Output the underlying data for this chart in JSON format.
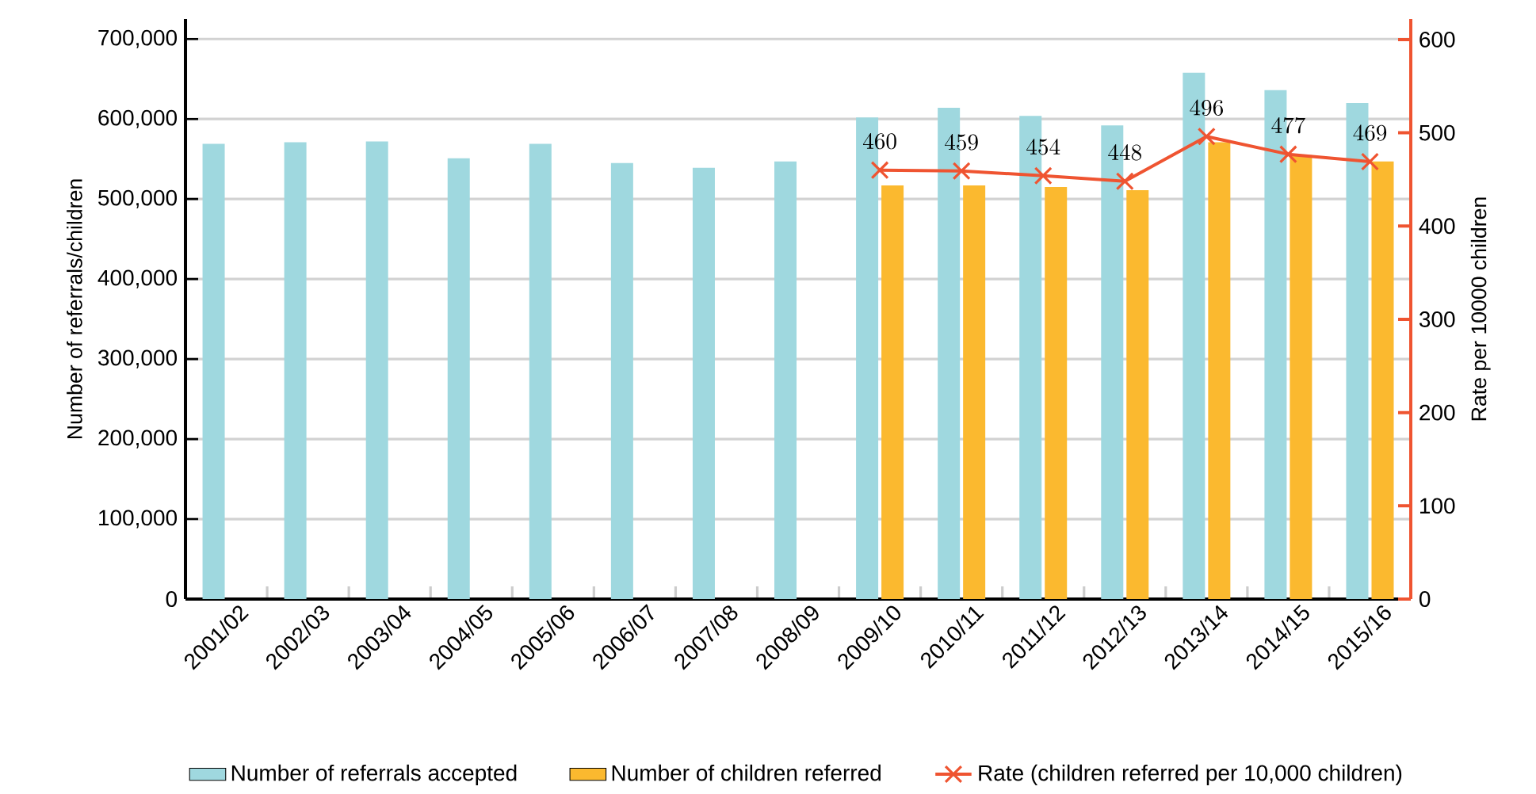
{
  "chart_data": {
    "type": "bar",
    "xlabel": null,
    "ylabel": "Number of referrals/children",
    "y2label": "Rate per 10000 children",
    "categories": [
      "2001/02",
      "2002/03",
      "2003/04",
      "2004/05",
      "2005/06",
      "2006/07",
      "2007/08",
      "2008/09",
      "2009/10",
      "2010/11",
      "2011/12",
      "2012/13",
      "2013/14",
      "2014/15",
      "2015/16"
    ],
    "series": [
      {
        "name": "Number of referrals accepted",
        "color": "#9fd8df",
        "values": [
          569000,
          571000,
          572000,
          551000,
          569000,
          545000,
          539000,
          547000,
          602000,
          614000,
          604000,
          592000,
          658000,
          636000,
          620000
        ]
      },
      {
        "name": "Number of children referred",
        "color": "#fbb92f",
        "values": [
          null,
          null,
          null,
          null,
          null,
          null,
          null,
          null,
          517000,
          517000,
          515000,
          511000,
          571000,
          555000,
          547000
        ]
      },
      {
        "name": "Rate (children referred per 10,000 children)",
        "color": "#ef5431",
        "type": "line",
        "axis": "y2",
        "marker": "cross",
        "line_style": "solid",
        "data_labels": true,
        "values": [
          null,
          null,
          null,
          null,
          null,
          null,
          null,
          null,
          460,
          459,
          454,
          448,
          496,
          477,
          469
        ]
      }
    ],
    "ylim": [
      0,
      725000
    ],
    "yticks": [
      {
        "value": 0,
        "label": "0"
      },
      {
        "value": 100000,
        "label": "100,000"
      },
      {
        "value": 200000,
        "label": "200,000"
      },
      {
        "value": 300000,
        "label": "300,000"
      },
      {
        "value": 400000,
        "label": "400,000"
      },
      {
        "value": 500000,
        "label": "500,000"
      },
      {
        "value": 600000,
        "label": "600,000"
      },
      {
        "value": 700000,
        "label": "700,000"
      }
    ],
    "y2lim": [
      0,
      622
    ],
    "y2ticks": [
      0,
      100,
      200,
      300,
      400,
      500,
      600
    ],
    "grid": "y",
    "legend": "bottom"
  }
}
